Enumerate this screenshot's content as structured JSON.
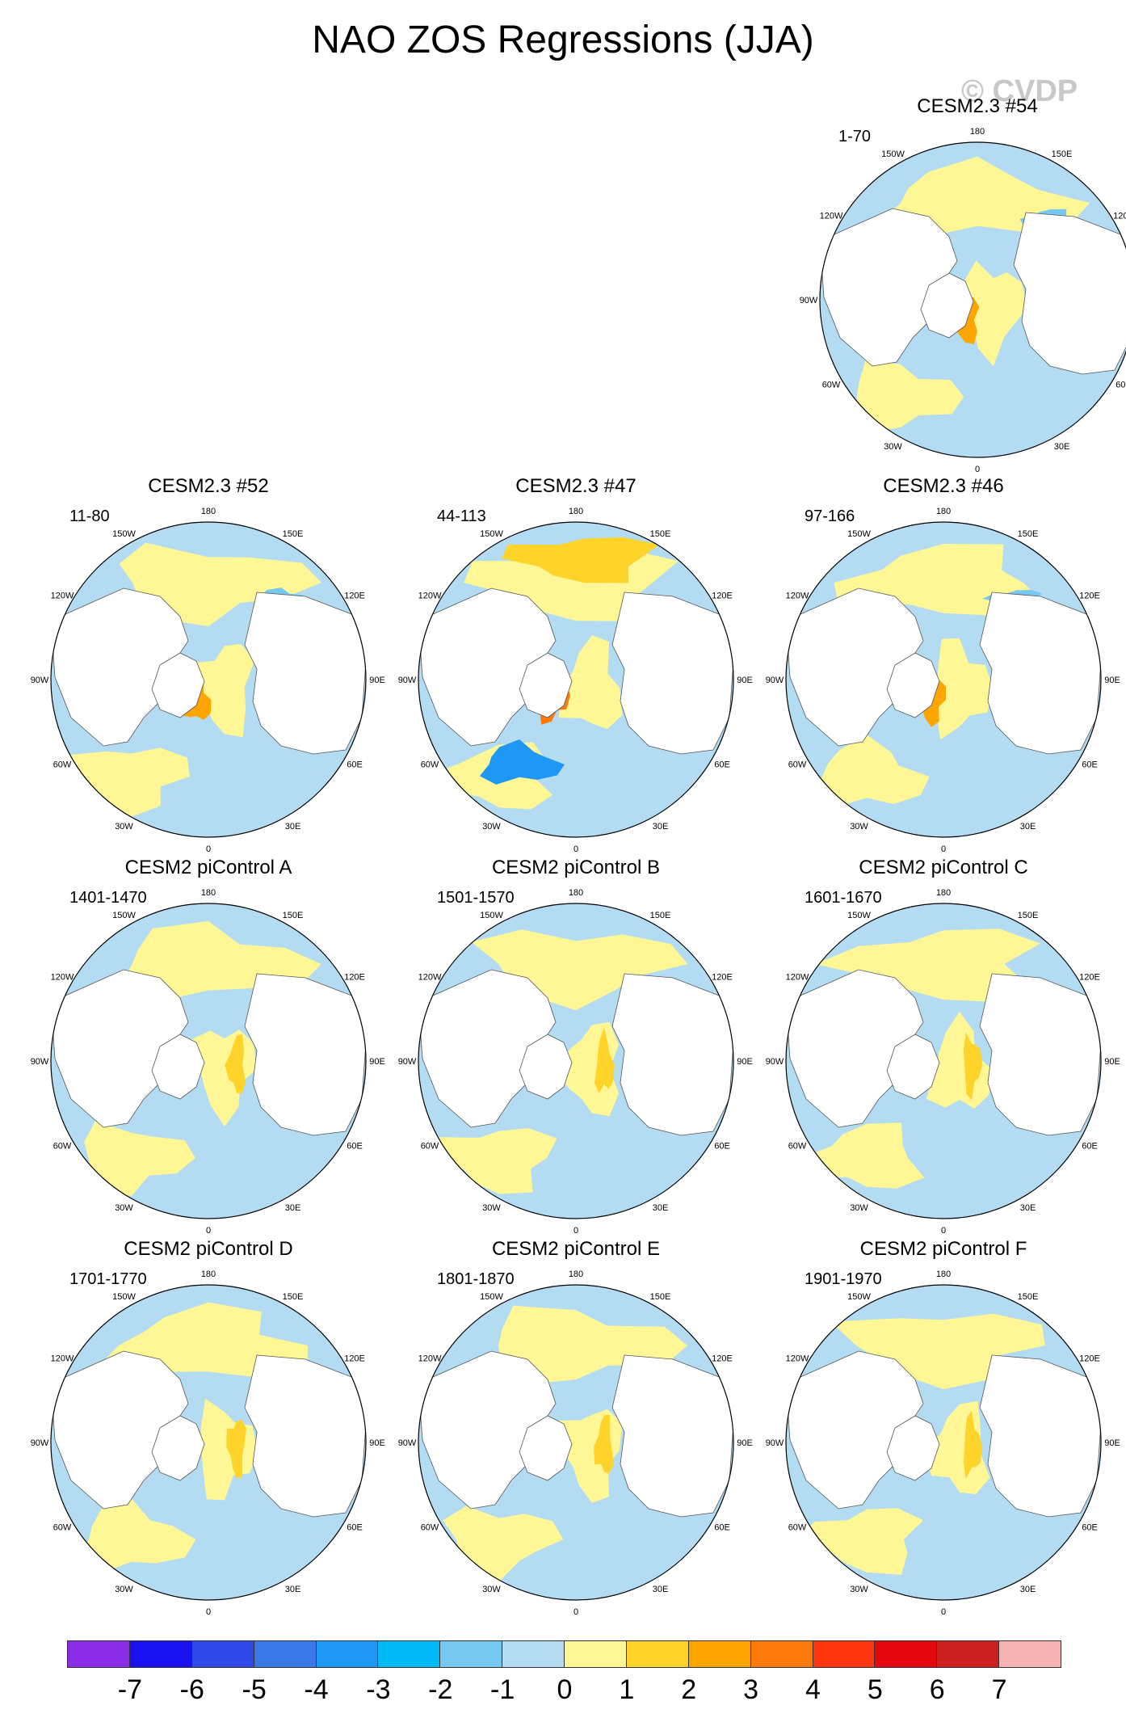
{
  "title": "NAO ZOS Regressions (JJA)",
  "watermark": "© CVDP",
  "lon_labels": [
    "180",
    "150E",
    "120E",
    "90E",
    "60E",
    "30E",
    "0",
    "30W",
    "60W",
    "90W",
    "120W",
    "150W"
  ],
  "colorbar": {
    "colors": [
      "#8a2ee8",
      "#1a12ee",
      "#2f48e6",
      "#3a78e6",
      "#1f97f5",
      "#00bbf5",
      "#76c8f0",
      "#b3dcf2",
      "#fff796",
      "#ffd42a",
      "#ffa500",
      "#ff7a0d",
      "#ff3610",
      "#e50710",
      "#cc1f1f",
      "#f7b3b3"
    ],
    "tick_labels": [
      "-7",
      "-6",
      "-5",
      "-4",
      "-3",
      "-2",
      "-1",
      "0",
      "1",
      "2",
      "3",
      "4",
      "5",
      "6",
      "7"
    ]
  },
  "panels": [
    {
      "name": "CESM2.3 #54",
      "range": "1-70"
    },
    {
      "name": "CESM2.3 #52",
      "range": "11-80"
    },
    {
      "name": "CESM2.3 #47",
      "range": "44-113"
    },
    {
      "name": "CESM2.3 #46",
      "range": "97-166"
    },
    {
      "name": "CESM2 piControl A",
      "range": "1401-1470"
    },
    {
      "name": "CESM2 piControl B",
      "range": "1501-1570"
    },
    {
      "name": "CESM2 piControl C",
      "range": "1601-1670"
    },
    {
      "name": "CESM2 piControl D",
      "range": "1701-1770"
    },
    {
      "name": "CESM2 piControl E",
      "range": "1801-1870"
    },
    {
      "name": "CESM2 piControl F",
      "range": "1901-1970"
    }
  ]
}
